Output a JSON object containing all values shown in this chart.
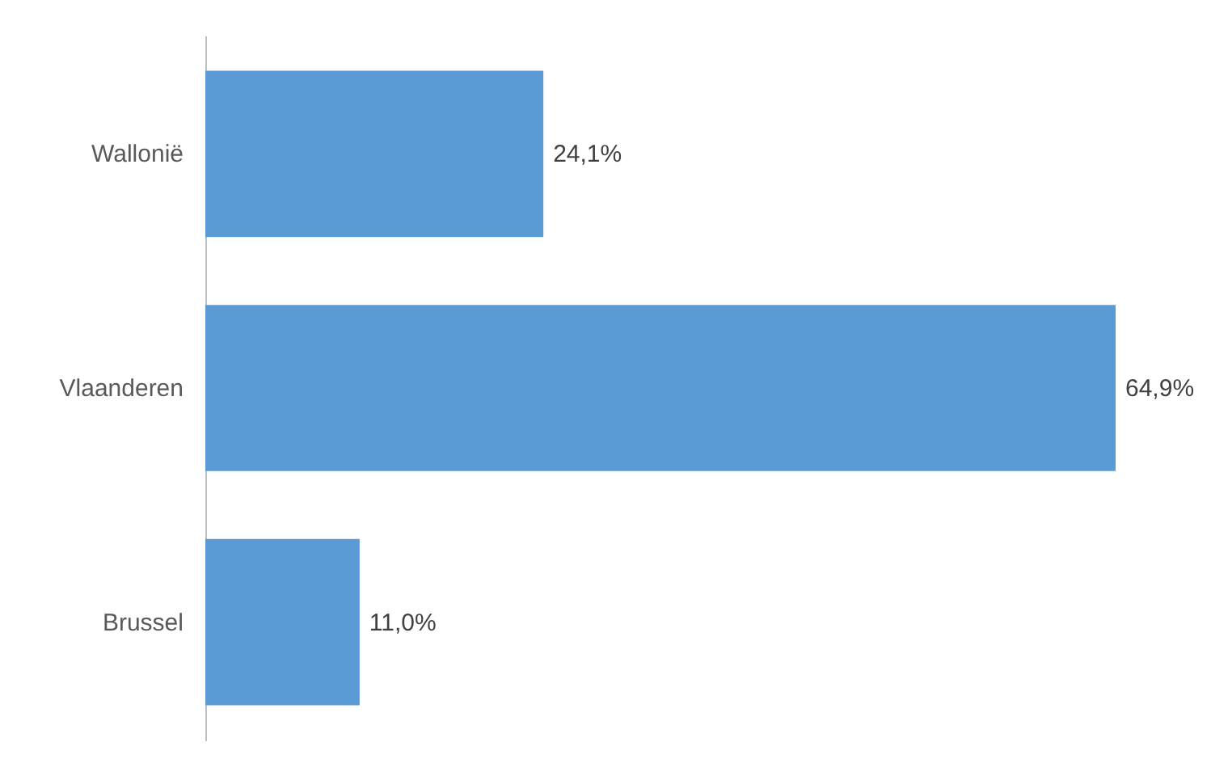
{
  "chart_data": {
    "type": "bar",
    "orientation": "horizontal",
    "categories": [
      "Wallonië",
      "Vlaanderen",
      "Brussel"
    ],
    "values": [
      24.1,
      64.9,
      11.0
    ],
    "value_labels": [
      "24,1%",
      "64,9%",
      "11,0%"
    ],
    "color": "#5b9bd5"
  }
}
